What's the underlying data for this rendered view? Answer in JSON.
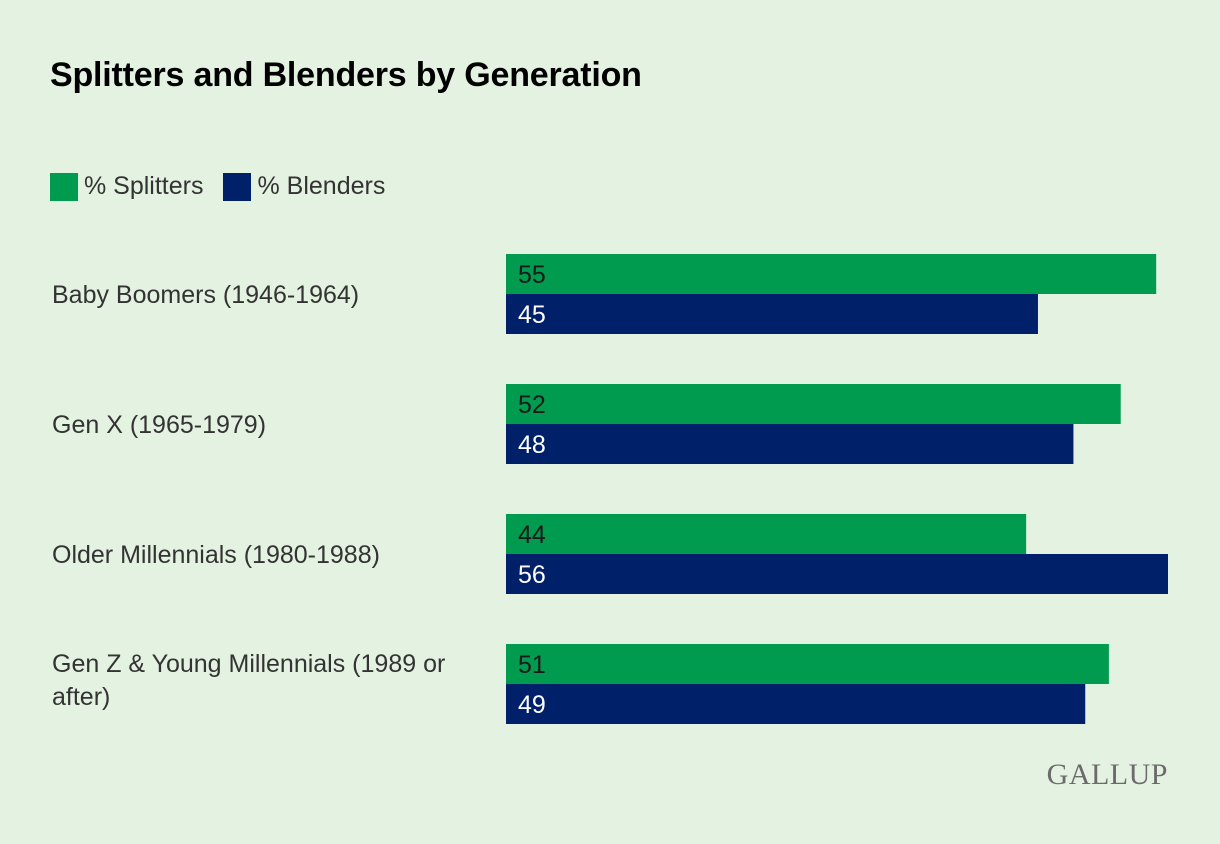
{
  "chart_data": {
    "type": "bar",
    "orientation": "horizontal",
    "title": "Splitters and Blenders by Generation",
    "categories": [
      [
        "Baby Boomers (1946-1964)"
      ],
      [
        "Gen X (1965-1979)"
      ],
      [
        "Older Millennials (1980-1988)"
      ],
      [
        "Gen Z & Young Millennials (1989 or",
        "after)"
      ]
    ],
    "series": [
      {
        "name": "% Splitters",
        "values": [
          55,
          52,
          44,
          51
        ],
        "color": "#009b4e",
        "label_color": "#1a1a1a"
      },
      {
        "name": "% Blenders",
        "values": [
          45,
          48,
          56,
          49
        ],
        "color": "#002169",
        "label_color": "#ffffff"
      }
    ],
    "xlim": [
      0,
      56
    ],
    "legend_position": "top-left",
    "grid": false
  },
  "brand": {
    "logo_text": "GALLUP"
  }
}
